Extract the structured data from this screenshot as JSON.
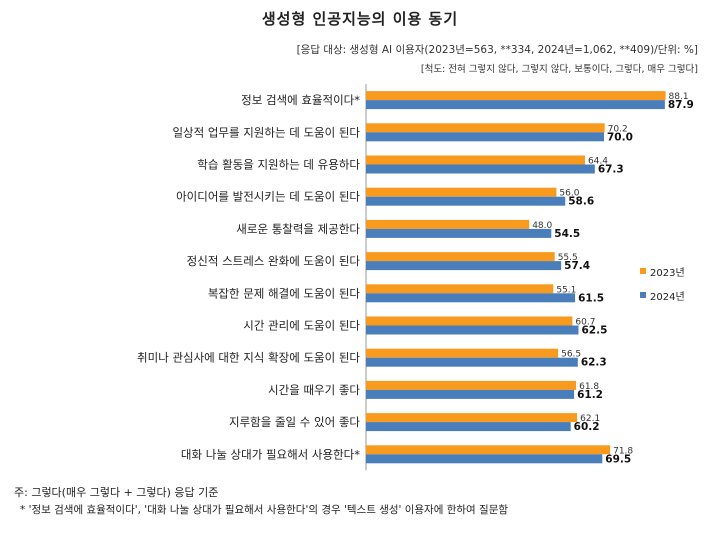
{
  "title": "생성형 인공지능의 이용 동기",
  "meta_line1": "[응답 대상: 생성형 AI 이용자(2023년=563, **334, 2024년=1,062, **409)/단위: %]",
  "meta_line2": "[척도: 전혀 그렇지 않다, 그렇지 않다, 보통이다, 그렇다, 매우 그렇다]",
  "legend": {
    "item_2023": "2023년",
    "item_2024": "2024년"
  },
  "colors": {
    "series_2023": "#f79a1e",
    "series_2024": "#4a7ebb"
  },
  "footnote1": "주: 그렇다(매우 그렇다 + 그렇다) 응답 기준",
  "footnote2": "* '정보 검색에 효율적이다', '대화 나눌 상대가 필요해서 사용한다'의 경우 '텍스트 생성' 이용자에 한하여 질문함",
  "chart_data": {
    "type": "bar",
    "orientation": "horizontal",
    "categories": [
      "정보 검색에 효율적이다*",
      "일상적 업무를 지원하는 데 도움이 된다",
      "학습 활동을 지원하는 데 유용하다",
      "아이디어를 발전시키는 데 도움이 된다",
      "새로운 통찰력을 제공한다",
      "정신적 스트레스 완화에 도움이 된다",
      "복잡한 문제 해결에 도움이 된다",
      "시간 관리에 도움이 된다",
      "취미나 관심사에 대한 지식 확장에 도움이 된다",
      "시간을 때우기 좋다",
      "지루함을 줄일 수 있어 좋다",
      "대화 나눌 상대가 필요해서 사용한다*"
    ],
    "series": [
      {
        "name": "2023년",
        "values": [
          88.1,
          70.2,
          64.4,
          56.0,
          48.0,
          55.5,
          55.1,
          60.7,
          56.5,
          61.8,
          62.1,
          71.8
        ],
        "labels": [
          "88.1",
          "70.2",
          "64.4",
          "56.0",
          "48.0",
          "55.5",
          "55.1",
          "60.7",
          "56.5",
          "61.8",
          "62.1",
          "71.8"
        ]
      },
      {
        "name": "2024년",
        "values": [
          87.9,
          70.0,
          67.3,
          58.6,
          54.5,
          57.4,
          61.5,
          62.5,
          62.3,
          61.2,
          60.2,
          69.5
        ],
        "labels": [
          "87.9",
          "70.0",
          "67.3",
          "58.6",
          "54.5",
          "57.4",
          "61.5",
          "62.5",
          "62.3",
          "61.2",
          "60.2",
          "69.5"
        ]
      }
    ],
    "xlim": [
      0,
      100
    ],
    "grid": false,
    "legend_position": "right"
  }
}
